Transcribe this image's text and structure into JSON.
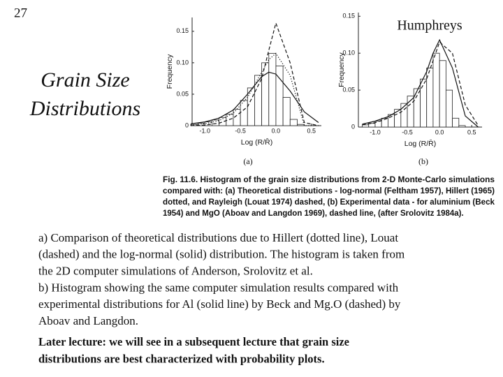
{
  "slide_number": "27",
  "author": "Humphreys",
  "title_lines": [
    "Grain Size",
    "Distributions"
  ],
  "chart_data": [
    {
      "type": "histogram",
      "label": "(a)",
      "xlabel": "Log (R/R̄)",
      "ylabel": "Frequency",
      "xlim": [
        -1.18,
        0.64
      ],
      "ylim": [
        0,
        0.172
      ],
      "xticks": [
        {
          "value": -1,
          "label": "-1.0"
        },
        {
          "value": -0.5,
          "label": "-0.5"
        },
        {
          "value": 0,
          "label": "0.0"
        },
        {
          "value": 0.5,
          "label": "0.5"
        }
      ],
      "yticks": [
        0,
        0.05,
        {
          "value": 0.1,
          "label": "0.10"
        },
        0.15
      ],
      "color": "#222",
      "bins": [
        -1.2,
        -1.1,
        -1.0,
        -0.9,
        -0.8,
        -0.7,
        -0.6,
        -0.5,
        -0.4,
        -0.3,
        -0.2,
        -0.1,
        0.0,
        0.1,
        0.2,
        0.3,
        0.4
      ],
      "values": [
        0.002,
        0.004,
        0.006,
        0.009,
        0.013,
        0.018,
        0.026,
        0.04,
        0.06,
        0.08,
        0.1,
        0.115,
        0.095,
        0.045,
        0.01,
        0.002
      ],
      "curves": {
        "x": [
          -1.2,
          -1.0,
          -0.8,
          -0.6,
          -0.4,
          -0.2,
          -0.1,
          0,
          0.2,
          0.4,
          0.6
        ],
        "series": [
          {
            "dash": "solid",
            "values": [
              0.003,
              0.006,
              0.012,
              0.025,
              0.05,
              0.078,
              0.085,
              0.082,
              0.055,
              0.022,
              0.005
            ]
          },
          {
            "dash": "dashed",
            "values": [
              0,
              0.001,
              0.004,
              0.012,
              0.03,
              0.075,
              0.12,
              0.163,
              0.1,
              0.005,
              0
            ]
          },
          {
            "dash": "dotted",
            "values": [
              0.001,
              0.003,
              0.008,
              0.02,
              0.045,
              0.085,
              0.105,
              0.115,
              0.08,
              0,
              0
            ]
          }
        ]
      }
    },
    {
      "type": "histogram",
      "label": "(b)",
      "xlabel": "Log (R/R̄)",
      "ylabel": "Frequency",
      "xlim": [
        -1.26,
        0.66
      ],
      "ylim": [
        0,
        0.155
      ],
      "xticks": [
        {
          "value": -1,
          "label": "-1.0"
        },
        {
          "value": -0.5,
          "label": "-0.5"
        },
        {
          "value": 0,
          "label": "0.0"
        },
        {
          "value": 0.5,
          "label": "0.5"
        }
      ],
      "yticks": [
        0,
        0.05,
        {
          "value": 0.1,
          "label": "0.10"
        },
        0.15
      ],
      "color": "#222",
      "bins": [
        -1.2,
        -1.1,
        -1.0,
        -0.9,
        -0.8,
        -0.7,
        -0.6,
        -0.5,
        -0.4,
        -0.3,
        -0.2,
        -0.1,
        0.0,
        0.1,
        0.2,
        0.3,
        0.4
      ],
      "values": [
        0.003,
        0.005,
        0.008,
        0.012,
        0.017,
        0.024,
        0.032,
        0.042,
        0.052,
        0.065,
        0.08,
        0.1,
        0.09,
        0.05,
        0.012,
        0.002
      ],
      "curves": {
        "x": [
          -1.2,
          -1.0,
          -0.8,
          -0.6,
          -0.4,
          -0.2,
          -0.1,
          0,
          0.2,
          0.4,
          0.6
        ],
        "series": [
          {
            "dash": "solid",
            "values": [
              0.004,
              0.008,
              0.014,
              0.024,
              0.04,
              0.075,
              0.1,
              0.118,
              0.08,
              0.015,
              0
            ]
          },
          {
            "dash": "dashed",
            "values": [
              0.003,
              0.006,
              0.012,
              0.02,
              0.035,
              0.065,
              0.09,
              0.115,
              0.1,
              0.03,
              0.002
            ]
          }
        ]
      }
    }
  ],
  "caption_lines": [
    "Fig. 11.6.    Histogram of the grain size distributions from 2-D Monte-Carlo simulations",
    "compared with: (a) Theoretical distributions - log-normal (Feltham 1957), Hillert (1965)",
    "dotted, and Rayleigh (Louat 1974) dashed, (b) Experimental data - for aluminium (Beck",
    "1954) and MgO (Aboav and Langdon 1969), dashed line, (after Srolovitz 1984a)."
  ],
  "body_lines": [
    "a) Comparison of theoretical distributions due to Hillert (dotted line), Louat",
    "(dashed) and the log-normal (solid) distribution.  The histogram is taken from",
    "the 2D computer simulations of Anderson, Srolovitz et al.",
    "b) Histogram showing the same computer simulation results compared with",
    "experimental distributions for Al (solid line) by Beck and Mg.O (dashed) by",
    "Aboav and Langdon."
  ],
  "bold_lines": [
    "Later lecture: we will see in a subsequent lecture that grain size",
    "distributions are best characterized with probability plots."
  ]
}
